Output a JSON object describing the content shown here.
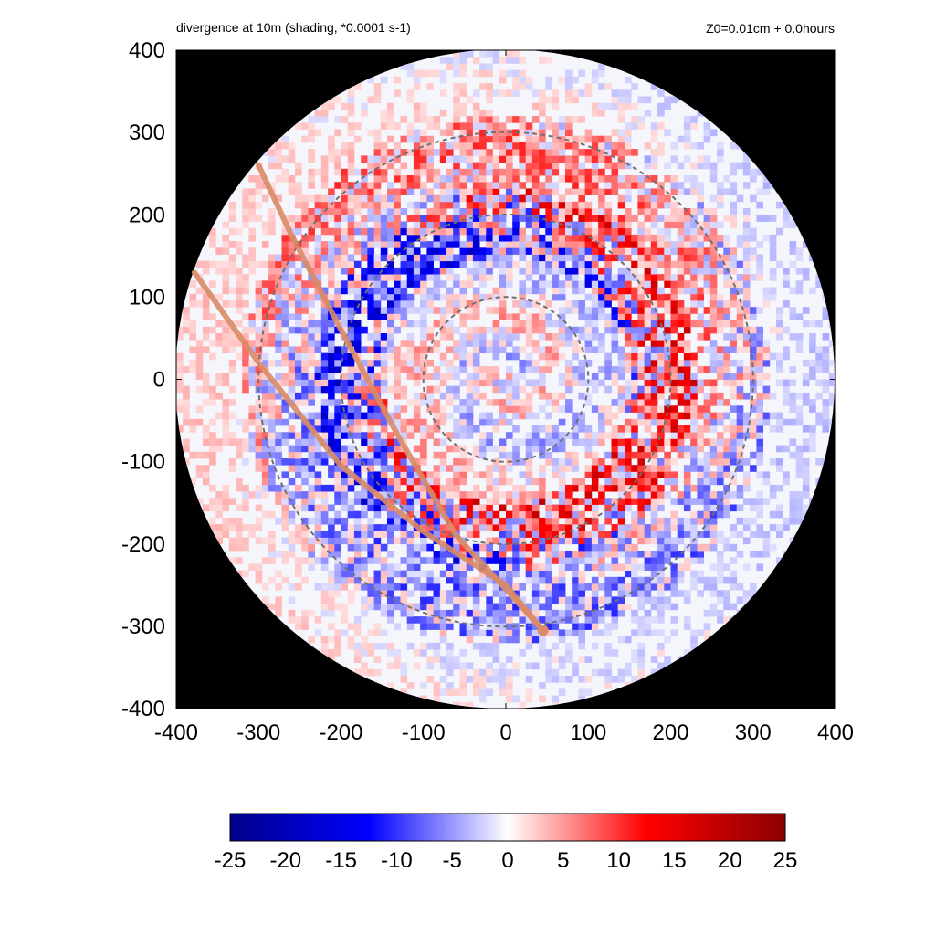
{
  "chart_data": {
    "type": "heatmap",
    "title": "divergence at 10m (shading, *0.0001 s-1)",
    "subtitle": "Z0=0.01cm  + 0.0hours",
    "xlabel": "",
    "ylabel": "",
    "xlim": [
      -400,
      400
    ],
    "ylim": [
      -400,
      400
    ],
    "x_ticks": [
      "-400",
      "-300",
      "-200",
      "-100",
      "0",
      "100",
      "200",
      "300",
      "400"
    ],
    "y_ticks": [
      "400",
      "300",
      "200",
      "100",
      "0",
      "-100",
      "-200",
      "-300",
      "-400"
    ],
    "domain_radius": 400,
    "background_color": "#000000",
    "range_rings": [
      100,
      200,
      300
    ],
    "ring_color": "#707070",
    "tracks": [
      {
        "points": [
          [
            -300,
            260
          ],
          [
            -260,
            175
          ],
          [
            -200,
            60
          ],
          [
            -130,
            -70
          ],
          [
            -60,
            -190
          ],
          [
            0,
            -255
          ],
          [
            45,
            -305
          ]
        ]
      },
      {
        "points": [
          [
            -378,
            130
          ],
          [
            -300,
            20
          ],
          [
            -200,
            -105
          ],
          [
            -100,
            -185
          ],
          [
            0,
            -250
          ],
          [
            45,
            -305
          ]
        ]
      }
    ],
    "track_color": "#d98b66",
    "track_end_marker": [
      45,
      -305
    ],
    "colorbar": {
      "min": -25,
      "max": 25,
      "ticks": [
        "-25",
        "-20",
        "-15",
        "-10",
        "-5",
        "0",
        "5",
        "10",
        "15",
        "20",
        "25"
      ],
      "colors": [
        "#00008b",
        "#0000ff",
        "#ffffff",
        "#ff0000",
        "#8b0000"
      ]
    }
  }
}
